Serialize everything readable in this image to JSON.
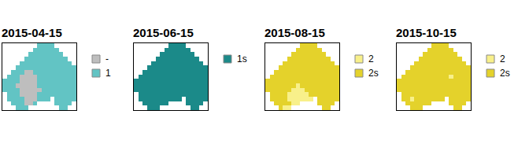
{
  "chart_data": [
    {
      "type": "raster",
      "title": "2015-04-15",
      "categories": [
        "-",
        "1"
      ],
      "colors": [
        "#bebebe",
        "#62c4c4"
      ],
      "tick_labels": false,
      "cells": [
        [
          null,
          null,
          null,
          null,
          null,
          null,
          null,
          null,
          1,
          1,
          1,
          1,
          null,
          null,
          null,
          null,
          null
        ],
        [
          null,
          null,
          null,
          null,
          null,
          null,
          null,
          1,
          1,
          1,
          1,
          1,
          1,
          null,
          null,
          null,
          null
        ],
        [
          null,
          null,
          null,
          null,
          null,
          null,
          1,
          1,
          1,
          1,
          1,
          1,
          1,
          1,
          null,
          null,
          null
        ],
        [
          null,
          null,
          null,
          null,
          null,
          1,
          1,
          1,
          1,
          1,
          1,
          1,
          1,
          1,
          1,
          null,
          null
        ],
        [
          null,
          null,
          null,
          null,
          1,
          1,
          1,
          1,
          1,
          1,
          1,
          1,
          1,
          1,
          1,
          1,
          null
        ],
        [
          null,
          null,
          null,
          1,
          1,
          1,
          1,
          1,
          1,
          1,
          1,
          1,
          1,
          1,
          1,
          1,
          1
        ],
        [
          null,
          null,
          1,
          1,
          1,
          0,
          0,
          1,
          1,
          1,
          1,
          1,
          1,
          1,
          1,
          1,
          1
        ],
        [
          null,
          1,
          1,
          1,
          0,
          0,
          0,
          0,
          1,
          1,
          1,
          1,
          1,
          1,
          1,
          1,
          1
        ],
        [
          1,
          1,
          1,
          1,
          0,
          0,
          0,
          0,
          1,
          1,
          1,
          1,
          1,
          1,
          1,
          1,
          1
        ],
        [
          1,
          1,
          1,
          0,
          0,
          0,
          0,
          0,
          1,
          1,
          1,
          1,
          1,
          1,
          1,
          1,
          1
        ],
        [
          1,
          1,
          1,
          1,
          0,
          0,
          0,
          0,
          0,
          1,
          1,
          1,
          1,
          1,
          1,
          1,
          1
        ],
        [
          null,
          1,
          1,
          1,
          0,
          0,
          0,
          0,
          1,
          1,
          1,
          1,
          1,
          1,
          1,
          1,
          1
        ],
        [
          null,
          1,
          1,
          1,
          1,
          0,
          0,
          0,
          1,
          1,
          1,
          null,
          1,
          1,
          1,
          1,
          1
        ],
        [
          null,
          null,
          1,
          1,
          1,
          0,
          0,
          1,
          null,
          null,
          null,
          null,
          1,
          1,
          1,
          1,
          null
        ],
        [
          null,
          null,
          null,
          1,
          1,
          1,
          null,
          null,
          null,
          null,
          null,
          null,
          null,
          1,
          1,
          null,
          null
        ]
      ]
    },
    {
      "type": "raster",
      "title": "2015-06-15",
      "categories": [
        "1s"
      ],
      "colors": [
        "#1b8a89"
      ],
      "tick_labels": false,
      "cells": [
        [
          null,
          null,
          null,
          null,
          null,
          null,
          null,
          null,
          0,
          0,
          0,
          0,
          null,
          null,
          null,
          null,
          null
        ],
        [
          null,
          null,
          null,
          null,
          null,
          null,
          null,
          0,
          0,
          0,
          0,
          0,
          0,
          null,
          null,
          null,
          null
        ],
        [
          null,
          null,
          null,
          null,
          null,
          null,
          0,
          0,
          0,
          0,
          0,
          0,
          0,
          0,
          null,
          null,
          null
        ],
        [
          null,
          null,
          null,
          null,
          null,
          0,
          0,
          0,
          0,
          0,
          0,
          0,
          0,
          0,
          0,
          null,
          null
        ],
        [
          null,
          null,
          null,
          null,
          0,
          0,
          0,
          0,
          0,
          0,
          0,
          0,
          0,
          0,
          0,
          0,
          null
        ],
        [
          null,
          null,
          null,
          0,
          0,
          0,
          0,
          0,
          0,
          0,
          0,
          0,
          0,
          0,
          0,
          0,
          0
        ],
        [
          null,
          null,
          0,
          0,
          0,
          0,
          0,
          0,
          0,
          0,
          0,
          0,
          0,
          0,
          0,
          0,
          0
        ],
        [
          null,
          0,
          0,
          0,
          0,
          0,
          0,
          0,
          0,
          0,
          0,
          0,
          0,
          0,
          0,
          0,
          0
        ],
        [
          0,
          0,
          0,
          0,
          0,
          0,
          0,
          0,
          0,
          0,
          0,
          0,
          0,
          0,
          0,
          0,
          0
        ],
        [
          0,
          0,
          0,
          0,
          0,
          0,
          0,
          0,
          0,
          0,
          0,
          0,
          0,
          0,
          0,
          0,
          0
        ],
        [
          0,
          0,
          0,
          0,
          0,
          0,
          0,
          0,
          0,
          0,
          0,
          0,
          0,
          0,
          0,
          0,
          0
        ],
        [
          null,
          0,
          0,
          0,
          0,
          0,
          0,
          0,
          0,
          0,
          0,
          0,
          0,
          0,
          0,
          0,
          0
        ],
        [
          null,
          0,
          0,
          0,
          0,
          0,
          0,
          0,
          0,
          0,
          0,
          null,
          0,
          0,
          0,
          0,
          0
        ],
        [
          null,
          null,
          0,
          0,
          0,
          0,
          0,
          0,
          null,
          null,
          null,
          null,
          0,
          0,
          0,
          0,
          null
        ],
        [
          null,
          null,
          null,
          0,
          0,
          0,
          null,
          null,
          null,
          null,
          null,
          null,
          null,
          0,
          0,
          null,
          null
        ]
      ]
    },
    {
      "type": "raster",
      "title": "2015-08-15",
      "categories": [
        "2",
        "2s"
      ],
      "colors": [
        "#f8f08a",
        "#e4d22b"
      ],
      "tick_labels": false,
      "cells": [
        [
          null,
          null,
          null,
          null,
          null,
          null,
          null,
          null,
          1,
          1,
          1,
          1,
          null,
          null,
          null,
          null,
          null
        ],
        [
          null,
          null,
          null,
          null,
          null,
          null,
          null,
          1,
          1,
          1,
          1,
          1,
          1,
          null,
          null,
          null,
          null
        ],
        [
          null,
          null,
          null,
          null,
          null,
          null,
          1,
          1,
          1,
          1,
          1,
          1,
          1,
          1,
          null,
          null,
          null
        ],
        [
          null,
          null,
          null,
          null,
          null,
          1,
          1,
          1,
          1,
          1,
          1,
          1,
          1,
          1,
          1,
          null,
          null
        ],
        [
          null,
          null,
          null,
          null,
          1,
          1,
          1,
          1,
          1,
          1,
          1,
          1,
          1,
          1,
          1,
          1,
          null
        ],
        [
          null,
          null,
          null,
          1,
          1,
          1,
          1,
          1,
          1,
          1,
          1,
          1,
          1,
          1,
          1,
          1,
          1
        ],
        [
          null,
          null,
          1,
          1,
          1,
          1,
          1,
          1,
          1,
          1,
          1,
          1,
          1,
          1,
          1,
          1,
          1
        ],
        [
          null,
          1,
          1,
          1,
          1,
          1,
          1,
          1,
          1,
          1,
          1,
          1,
          1,
          1,
          1,
          1,
          1
        ],
        [
          1,
          1,
          1,
          1,
          1,
          1,
          1,
          1,
          1,
          1,
          1,
          1,
          1,
          1,
          1,
          1,
          1
        ],
        [
          1,
          1,
          1,
          1,
          1,
          1,
          1,
          0,
          1,
          1,
          1,
          1,
          1,
          1,
          1,
          1,
          1
        ],
        [
          1,
          1,
          1,
          1,
          1,
          1,
          0,
          0,
          0,
          1,
          1,
          1,
          1,
          1,
          1,
          1,
          1
        ],
        [
          null,
          1,
          1,
          1,
          1,
          0,
          0,
          0,
          0,
          0,
          1,
          1,
          1,
          1,
          1,
          1,
          1
        ],
        [
          null,
          1,
          1,
          1,
          1,
          0,
          0,
          0,
          0,
          0,
          0,
          null,
          1,
          1,
          1,
          1,
          1
        ],
        [
          null,
          null,
          1,
          1,
          1,
          1,
          0,
          0,
          null,
          null,
          null,
          null,
          1,
          1,
          1,
          1,
          null
        ],
        [
          null,
          null,
          null,
          1,
          0,
          0,
          null,
          null,
          null,
          null,
          null,
          null,
          null,
          1,
          1,
          null,
          null
        ]
      ]
    },
    {
      "type": "raster",
      "title": "2015-10-15",
      "categories": [
        "2",
        "2s"
      ],
      "colors": [
        "#f8f08a",
        "#e4d22b"
      ],
      "tick_labels": false,
      "cells": [
        [
          null,
          null,
          null,
          null,
          null,
          null,
          null,
          null,
          1,
          1,
          1,
          1,
          null,
          null,
          null,
          null,
          null
        ],
        [
          null,
          null,
          null,
          null,
          null,
          null,
          null,
          1,
          1,
          1,
          1,
          1,
          1,
          null,
          null,
          null,
          null
        ],
        [
          null,
          null,
          null,
          null,
          null,
          null,
          1,
          1,
          1,
          1,
          1,
          1,
          1,
          1,
          null,
          null,
          null
        ],
        [
          null,
          null,
          null,
          null,
          null,
          1,
          1,
          1,
          1,
          1,
          1,
          1,
          1,
          1,
          1,
          null,
          null
        ],
        [
          null,
          null,
          null,
          null,
          1,
          1,
          1,
          1,
          1,
          1,
          1,
          1,
          1,
          1,
          1,
          1,
          null
        ],
        [
          null,
          null,
          null,
          1,
          1,
          1,
          1,
          1,
          1,
          1,
          1,
          1,
          1,
          1,
          1,
          1,
          1
        ],
        [
          null,
          null,
          1,
          1,
          1,
          1,
          1,
          1,
          1,
          1,
          1,
          1,
          1,
          1,
          1,
          1,
          1
        ],
        [
          null,
          1,
          1,
          1,
          1,
          1,
          1,
          1,
          1,
          1,
          1,
          1,
          0,
          1,
          1,
          1,
          1
        ],
        [
          1,
          1,
          1,
          1,
          1,
          1,
          1,
          1,
          1,
          1,
          1,
          1,
          1,
          1,
          1,
          1,
          1
        ],
        [
          1,
          1,
          1,
          1,
          1,
          1,
          1,
          1,
          1,
          1,
          1,
          1,
          1,
          1,
          1,
          1,
          1
        ],
        [
          1,
          1,
          1,
          1,
          1,
          1,
          1,
          1,
          1,
          1,
          1,
          1,
          1,
          1,
          1,
          1,
          1
        ],
        [
          null,
          1,
          1,
          1,
          1,
          1,
          1,
          1,
          1,
          1,
          1,
          1,
          1,
          1,
          1,
          1,
          1
        ],
        [
          null,
          1,
          1,
          0,
          1,
          1,
          1,
          1,
          1,
          1,
          1,
          null,
          1,
          1,
          1,
          1,
          1
        ],
        [
          null,
          null,
          1,
          1,
          1,
          1,
          1,
          1,
          null,
          null,
          null,
          null,
          1,
          1,
          1,
          1,
          null
        ],
        [
          null,
          null,
          null,
          1,
          1,
          1,
          null,
          null,
          null,
          null,
          null,
          null,
          null,
          1,
          1,
          null,
          null
        ]
      ]
    }
  ]
}
